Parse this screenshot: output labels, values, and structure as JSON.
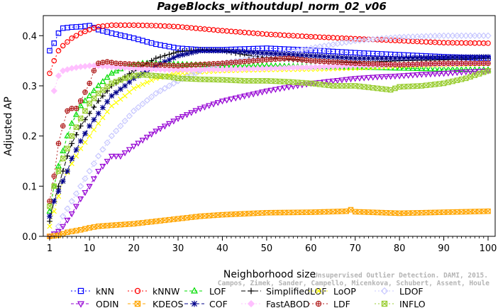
{
  "chart_data": {
    "type": "line",
    "title": "PageBlocks_withoutdupl_norm_02_v06",
    "xlabel": "Neighborhood size",
    "ylabel": "Adjusted AP",
    "xlim": [
      1,
      100
    ],
    "ylim": [
      0,
      0.44
    ],
    "x_ticks": [
      "1",
      "10",
      "20",
      "30",
      "40",
      "50",
      "60",
      "70",
      "80",
      "90",
      "100"
    ],
    "y_ticks": [
      "0.0",
      "0.1",
      "0.2",
      "0.3",
      "0.4"
    ],
    "grid": false,
    "legend_position": "bottom",
    "watermark": [
      "Campos, Zimek, Sander, Campello, Micenkova, Schubert, Assent, Houle",
      "Unsupervised Outlier Detection. DAMI, 2015."
    ],
    "series": [
      {
        "name": "kNN",
        "color": "#0000ff",
        "marker": "square",
        "dash": "2,3",
        "points": [
          [
            1,
            0.37
          ],
          [
            2,
            0.385
          ],
          [
            3,
            0.405
          ],
          [
            4,
            0.415
          ],
          [
            6,
            0.417
          ],
          [
            8,
            0.418
          ],
          [
            10,
            0.42
          ],
          [
            12,
            0.412
          ],
          [
            15,
            0.405
          ],
          [
            20,
            0.395
          ],
          [
            25,
            0.383
          ],
          [
            30,
            0.375
          ],
          [
            35,
            0.372
          ],
          [
            40,
            0.372
          ],
          [
            50,
            0.375
          ],
          [
            60,
            0.371
          ],
          [
            70,
            0.366
          ],
          [
            80,
            0.362
          ],
          [
            90,
            0.358
          ],
          [
            100,
            0.355
          ]
        ]
      },
      {
        "name": "kNNW",
        "color": "#ff0000",
        "marker": "circle",
        "dash": "2,3",
        "points": [
          [
            1,
            0.325
          ],
          [
            2,
            0.35
          ],
          [
            3,
            0.37
          ],
          [
            4,
            0.38
          ],
          [
            6,
            0.395
          ],
          [
            8,
            0.405
          ],
          [
            10,
            0.412
          ],
          [
            12,
            0.418
          ],
          [
            15,
            0.421
          ],
          [
            20,
            0.421
          ],
          [
            25,
            0.42
          ],
          [
            30,
            0.418
          ],
          [
            40,
            0.41
          ],
          [
            50,
            0.403
          ],
          [
            60,
            0.398
          ],
          [
            70,
            0.394
          ],
          [
            80,
            0.39
          ],
          [
            90,
            0.386
          ],
          [
            100,
            0.385
          ]
        ]
      },
      {
        "name": "LOF",
        "color": "#00dd00",
        "marker": "triangle-up",
        "dash": "4,3",
        "points": [
          [
            1,
            0.05
          ],
          [
            2,
            0.1
          ],
          [
            3,
            0.14
          ],
          [
            4,
            0.17
          ],
          [
            5,
            0.2
          ],
          [
            6,
            0.225
          ],
          [
            8,
            0.26
          ],
          [
            10,
            0.28
          ],
          [
            12,
            0.3
          ],
          [
            15,
            0.325
          ],
          [
            18,
            0.338
          ],
          [
            22,
            0.345
          ],
          [
            25,
            0.345
          ],
          [
            30,
            0.343
          ],
          [
            35,
            0.342
          ],
          [
            40,
            0.34
          ],
          [
            50,
            0.34
          ],
          [
            60,
            0.338
          ],
          [
            70,
            0.337
          ],
          [
            80,
            0.335
          ],
          [
            90,
            0.333
          ],
          [
            100,
            0.332
          ]
        ]
      },
      {
        "name": "SimplifiedLOF",
        "color": "#000000",
        "marker": "plus",
        "dash": "6,3",
        "points": [
          [
            1,
            0.03
          ],
          [
            2,
            0.07
          ],
          [
            3,
            0.1
          ],
          [
            4,
            0.13
          ],
          [
            5,
            0.16
          ],
          [
            6,
            0.185
          ],
          [
            8,
            0.22
          ],
          [
            10,
            0.245
          ],
          [
            12,
            0.27
          ],
          [
            15,
            0.3
          ],
          [
            20,
            0.33
          ],
          [
            25,
            0.355
          ],
          [
            30,
            0.368
          ],
          [
            35,
            0.372
          ],
          [
            40,
            0.37
          ],
          [
            45,
            0.362
          ],
          [
            50,
            0.356
          ],
          [
            55,
            0.353
          ],
          [
            60,
            0.35
          ],
          [
            65,
            0.348
          ],
          [
            70,
            0.347
          ],
          [
            75,
            0.348
          ],
          [
            80,
            0.35
          ],
          [
            90,
            0.352
          ],
          [
            100,
            0.355
          ]
        ]
      },
      {
        "name": "LoOP",
        "color": "#ffff00",
        "marker": "x",
        "dash": "2,3",
        "points": [
          [
            1,
            0.02
          ],
          [
            2,
            0.05
          ],
          [
            3,
            0.08
          ],
          [
            4,
            0.11
          ],
          [
            6,
            0.145
          ],
          [
            8,
            0.175
          ],
          [
            10,
            0.2
          ],
          [
            12,
            0.225
          ],
          [
            15,
            0.26
          ],
          [
            18,
            0.28
          ],
          [
            20,
            0.295
          ],
          [
            25,
            0.315
          ],
          [
            30,
            0.325
          ],
          [
            40,
            0.33
          ],
          [
            50,
            0.332
          ],
          [
            60,
            0.333
          ],
          [
            70,
            0.335
          ],
          [
            80,
            0.34
          ],
          [
            90,
            0.342
          ],
          [
            100,
            0.345
          ]
        ]
      },
      {
        "name": "LDOF",
        "color": "#c8c8ff",
        "marker": "diamond",
        "dash": "2,3",
        "points": [
          [
            1,
            0.0
          ],
          [
            2,
            0.005
          ],
          [
            3,
            0.02
          ],
          [
            4,
            0.04
          ],
          [
            6,
            0.07
          ],
          [
            8,
            0.1
          ],
          [
            10,
            0.13
          ],
          [
            12,
            0.16
          ],
          [
            15,
            0.2
          ],
          [
            18,
            0.23
          ],
          [
            20,
            0.25
          ],
          [
            25,
            0.285
          ],
          [
            30,
            0.31
          ],
          [
            35,
            0.33
          ],
          [
            40,
            0.345
          ],
          [
            50,
            0.36
          ],
          [
            60,
            0.375
          ],
          [
            70,
            0.39
          ],
          [
            80,
            0.397
          ],
          [
            90,
            0.4
          ],
          [
            100,
            0.4
          ]
        ]
      },
      {
        "name": "ODIN",
        "color": "#9400d3",
        "marker": "triangle-down",
        "dash": "4,3",
        "points": [
          [
            1,
            0.0
          ],
          [
            3,
            0.01
          ],
          [
            4,
            0.02
          ],
          [
            6,
            0.045
          ],
          [
            8,
            0.075
          ],
          [
            10,
            0.1
          ],
          [
            12,
            0.13
          ],
          [
            15,
            0.16
          ],
          [
            17,
            0.16
          ],
          [
            20,
            0.18
          ],
          [
            25,
            0.21
          ],
          [
            30,
            0.235
          ],
          [
            35,
            0.255
          ],
          [
            40,
            0.27
          ],
          [
            45,
            0.28
          ],
          [
            50,
            0.29
          ],
          [
            55,
            0.298
          ],
          [
            60,
            0.305
          ],
          [
            65,
            0.31
          ],
          [
            70,
            0.315
          ],
          [
            75,
            0.318
          ],
          [
            80,
            0.32
          ],
          [
            85,
            0.323
          ],
          [
            90,
            0.325
          ],
          [
            95,
            0.328
          ],
          [
            100,
            0.33
          ]
        ]
      },
      {
        "name": "KDEOS",
        "color": "#ffa500",
        "marker": "square-x",
        "dash": "4,3",
        "points": [
          [
            1,
            0.0
          ],
          [
            3,
            0.002
          ],
          [
            5,
            0.008
          ],
          [
            8,
            0.013
          ],
          [
            10,
            0.017
          ],
          [
            12,
            0.02
          ],
          [
            15,
            0.022
          ],
          [
            20,
            0.025
          ],
          [
            25,
            0.03
          ],
          [
            30,
            0.035
          ],
          [
            35,
            0.04
          ],
          [
            40,
            0.043
          ],
          [
            45,
            0.045
          ],
          [
            50,
            0.047
          ],
          [
            60,
            0.048
          ],
          [
            68,
            0.05
          ],
          [
            69,
            0.053
          ],
          [
            70,
            0.049
          ],
          [
            80,
            0.046
          ],
          [
            90,
            0.048
          ],
          [
            100,
            0.05
          ]
        ]
      },
      {
        "name": "COF",
        "color": "#00008b",
        "marker": "asterisk",
        "dash": "5,3",
        "points": [
          [
            1,
            0.04
          ],
          [
            2,
            0.07
          ],
          [
            3,
            0.09
          ],
          [
            4,
            0.11
          ],
          [
            5,
            0.13
          ],
          [
            6,
            0.155
          ],
          [
            8,
            0.19
          ],
          [
            10,
            0.22
          ],
          [
            12,
            0.245
          ],
          [
            15,
            0.28
          ],
          [
            18,
            0.3
          ],
          [
            20,
            0.315
          ],
          [
            25,
            0.34
          ],
          [
            30,
            0.36
          ],
          [
            35,
            0.37
          ],
          [
            40,
            0.37
          ],
          [
            45,
            0.368
          ],
          [
            50,
            0.365
          ],
          [
            60,
            0.36
          ],
          [
            70,
            0.355
          ],
          [
            80,
            0.355
          ],
          [
            90,
            0.357
          ],
          [
            100,
            0.358
          ]
        ]
      },
      {
        "name": "FastABOD",
        "color": "#ffc0ff",
        "marker": "diamond-filled",
        "dash": "2,3",
        "points": [
          [
            2,
            0.29
          ],
          [
            3,
            0.32
          ],
          [
            4,
            0.33
          ],
          [
            6,
            0.335
          ],
          [
            8,
            0.338
          ],
          [
            10,
            0.34
          ],
          [
            12,
            0.34
          ],
          [
            15,
            0.338
          ],
          [
            20,
            0.335
          ],
          [
            25,
            0.333
          ],
          [
            30,
            0.332
          ],
          [
            40,
            0.333
          ],
          [
            50,
            0.335
          ],
          [
            60,
            0.337
          ],
          [
            70,
            0.34
          ],
          [
            80,
            0.342
          ],
          [
            90,
            0.343
          ],
          [
            100,
            0.345
          ]
        ]
      },
      {
        "name": "LDF",
        "color": "#b22222",
        "marker": "circle-plus",
        "dash": "2,3",
        "points": [
          [
            1,
            0.07
          ],
          [
            2,
            0.12
          ],
          [
            3,
            0.185
          ],
          [
            4,
            0.22
          ],
          [
            5,
            0.25
          ],
          [
            6,
            0.255
          ],
          [
            7,
            0.255
          ],
          [
            8,
            0.27
          ],
          [
            10,
            0.305
          ],
          [
            11,
            0.33
          ],
          [
            12,
            0.345
          ],
          [
            14,
            0.348
          ],
          [
            16,
            0.345
          ],
          [
            20,
            0.343
          ],
          [
            25,
            0.342
          ],
          [
            30,
            0.34
          ],
          [
            40,
            0.345
          ],
          [
            50,
            0.352
          ],
          [
            55,
            0.355
          ],
          [
            60,
            0.35
          ],
          [
            70,
            0.345
          ],
          [
            80,
            0.342
          ],
          [
            90,
            0.345
          ],
          [
            100,
            0.345
          ]
        ]
      },
      {
        "name": "INFLO",
        "color": "#9acd32",
        "marker": "square-x",
        "dash": "2,3",
        "points": [
          [
            1,
            0.06
          ],
          [
            2,
            0.1
          ],
          [
            3,
            0.13
          ],
          [
            4,
            0.155
          ],
          [
            5,
            0.175
          ],
          [
            6,
            0.2
          ],
          [
            8,
            0.235
          ],
          [
            10,
            0.265
          ],
          [
            12,
            0.285
          ],
          [
            15,
            0.305
          ],
          [
            18,
            0.315
          ],
          [
            20,
            0.32
          ],
          [
            22,
            0.322
          ],
          [
            25,
            0.32
          ],
          [
            28,
            0.318
          ],
          [
            30,
            0.315
          ],
          [
            35,
            0.313
          ],
          [
            40,
            0.312
          ],
          [
            45,
            0.31
          ],
          [
            50,
            0.31
          ],
          [
            55,
            0.308
          ],
          [
            60,
            0.305
          ],
          [
            65,
            0.3
          ],
          [
            70,
            0.3
          ],
          [
            75,
            0.295
          ],
          [
            78,
            0.292
          ],
          [
            80,
            0.298
          ],
          [
            85,
            0.3
          ],
          [
            90,
            0.305
          ],
          [
            95,
            0.315
          ],
          [
            100,
            0.33
          ]
        ]
      }
    ]
  }
}
